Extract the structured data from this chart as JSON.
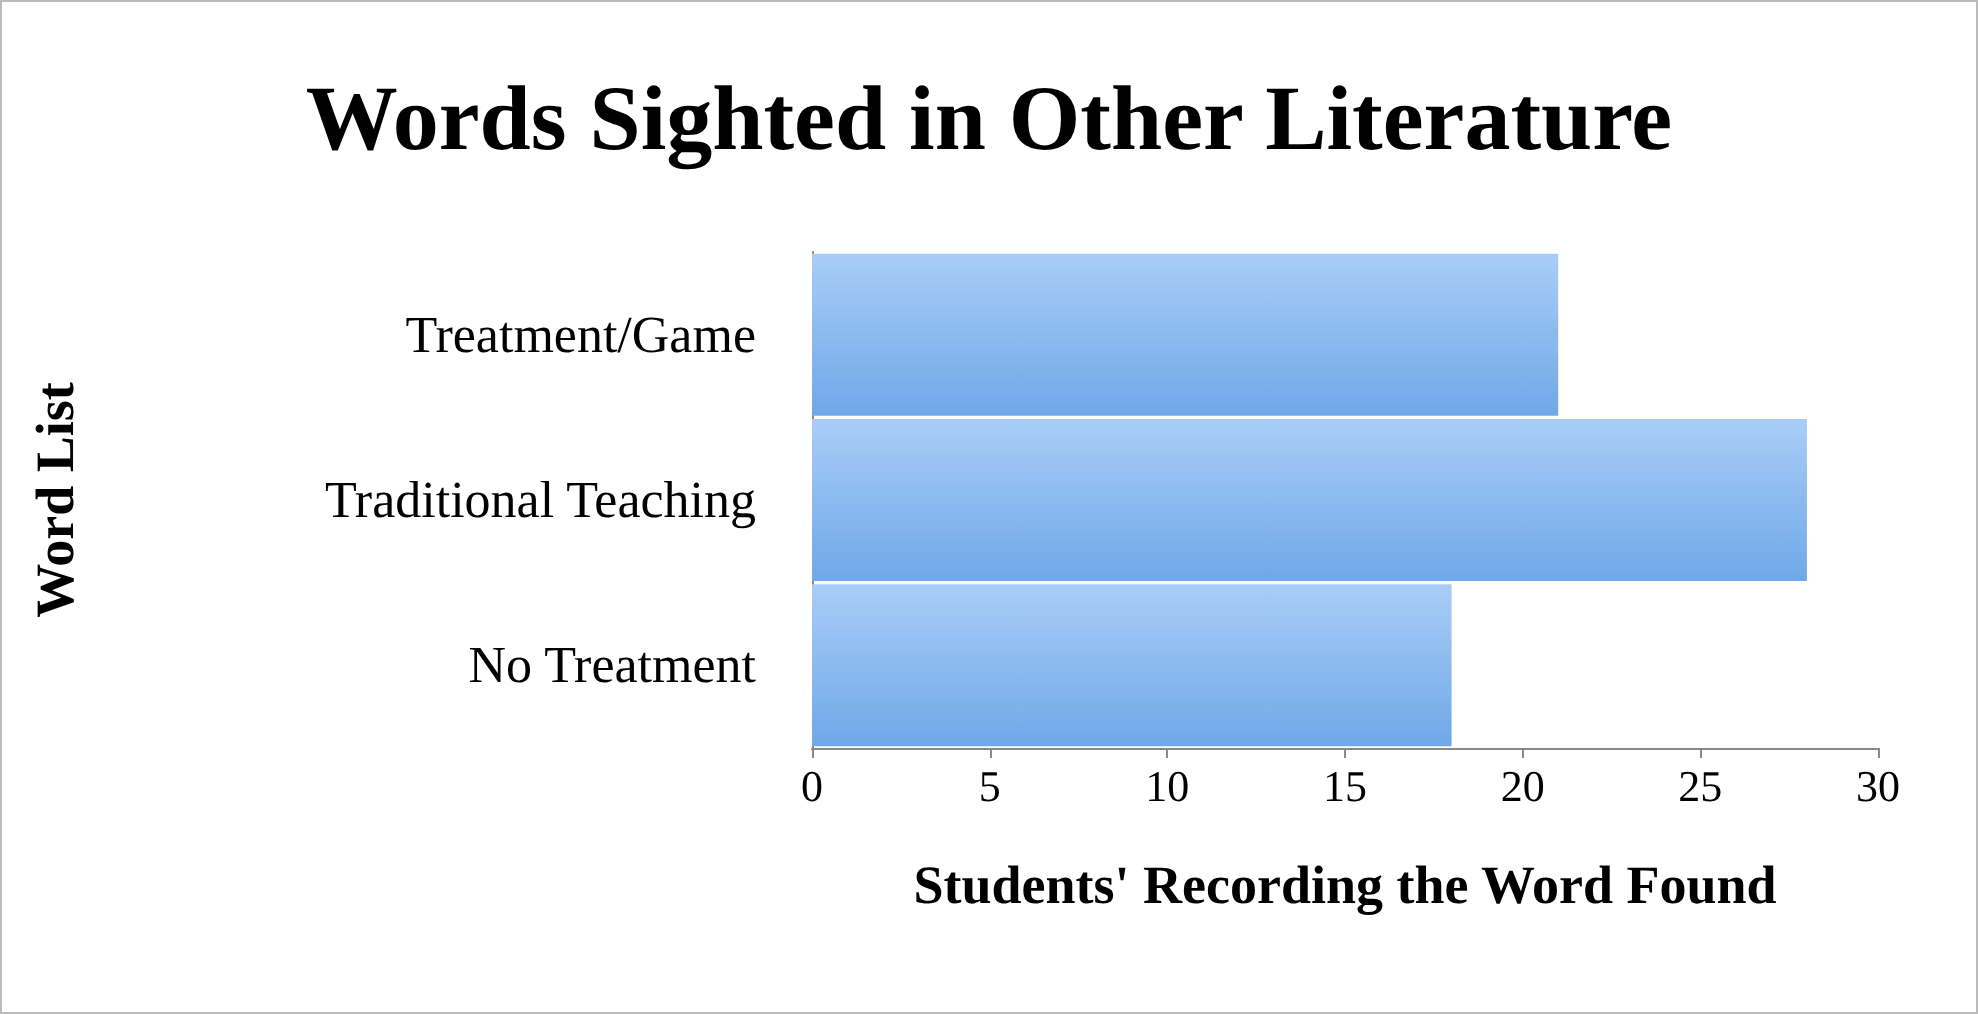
{
  "chart_data": {
    "type": "bar",
    "orientation": "horizontal",
    "title": "Words Sighted in Other Literature",
    "xlabel": "Students' Recording the Word Found",
    "ylabel": "Word List",
    "categories": [
      "Treatment/Game",
      "Traditional Teaching",
      "No Treatment"
    ],
    "values": [
      21,
      28,
      18
    ],
    "color": "#6fa8e8",
    "xlim": [
      0,
      30
    ],
    "xticks": [
      0,
      5,
      10,
      15,
      20,
      25,
      30
    ],
    "grid": false
  }
}
